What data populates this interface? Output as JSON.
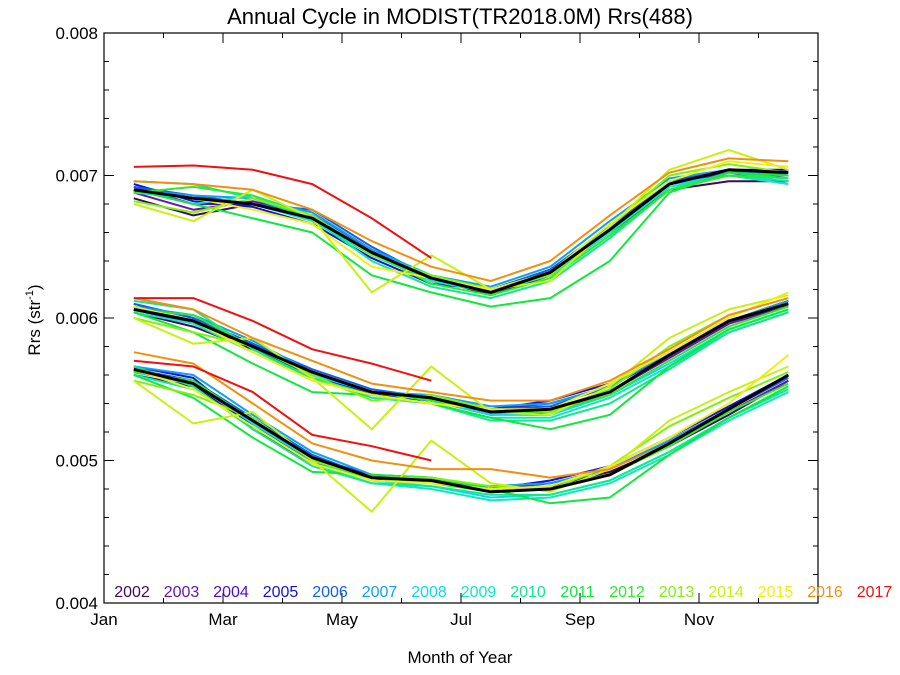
{
  "chart_data": {
    "type": "line",
    "title": "Annual Cycle in MODIST(TR2018.0M) Rrs(488)",
    "xlabel": "Month of Year",
    "ylabel": "Rrs (str",
    "ylabel_sup": "-1",
    "ylabel_close": ")",
    "xlim": [
      1,
      13
    ],
    "ylim": [
      0.004,
      0.008
    ],
    "x": [
      1.5,
      2.5,
      3.5,
      4.5,
      5.5,
      6.5,
      7.5,
      8.5,
      9.5,
      10.5,
      11.5,
      12.5
    ],
    "xticks": [
      {
        "value": 1,
        "label": "Jan"
      },
      {
        "value": 3,
        "label": "Mar"
      },
      {
        "value": 5,
        "label": "May"
      },
      {
        "value": 7,
        "label": "Jul"
      },
      {
        "value": 9,
        "label": "Sep"
      },
      {
        "value": 11,
        "label": "Nov"
      }
    ],
    "yticks": [
      {
        "value": 0.004,
        "label": "0.004"
      },
      {
        "value": 0.005,
        "label": "0.005"
      },
      {
        "value": 0.006,
        "label": "0.006"
      },
      {
        "value": 0.007,
        "label": "0.007"
      },
      {
        "value": 0.008,
        "label": "0.008"
      }
    ],
    "grid": false,
    "legend_placement": "bottom inside plot",
    "series": [
      {
        "name": "2002",
        "color": "#3d0a5c",
        "upper": [
          0.00684,
          0.00672,
          0.0068,
          0.00672,
          0.00645,
          0.00628,
          0.00616,
          0.0063,
          0.0066,
          0.0069,
          0.00696,
          0.00696
        ],
        "middle": [
          0.00604,
          0.00594,
          0.00578,
          0.0056,
          0.00546,
          0.00543,
          0.00534,
          0.00536,
          0.00548,
          0.00572,
          0.00596,
          0.0061
        ],
        "lower": [
          0.0056,
          0.00552,
          0.00526,
          0.005,
          0.00488,
          0.00488,
          0.0048,
          0.00482,
          0.00492,
          0.0051,
          0.00532,
          0.00556
        ]
      },
      {
        "name": "2003",
        "color": "#6a14a8",
        "upper": [
          0.00688,
          0.00676,
          0.00682,
          0.00672,
          0.00648,
          0.00626,
          0.00618,
          0.00632,
          0.00664,
          0.00694,
          0.007,
          0.007
        ],
        "middle": [
          0.00606,
          0.00596,
          0.0058,
          0.00562,
          0.00548,
          0.00542,
          0.00532,
          0.00534,
          0.00548,
          0.00572,
          0.00596,
          0.00608
        ],
        "lower": [
          0.00562,
          0.00554,
          0.00528,
          0.00502,
          0.0049,
          0.00488,
          0.00478,
          0.0048,
          0.0049,
          0.00512,
          0.00534,
          0.00556
        ]
      },
      {
        "name": "2004",
        "color": "#4a10d0",
        "upper": [
          0.00692,
          0.0068,
          0.0068,
          0.0067,
          0.00646,
          0.00628,
          0.0062,
          0.00634,
          0.00664,
          0.00694,
          0.00702,
          0.00702
        ],
        "middle": [
          0.00608,
          0.00598,
          0.0058,
          0.00562,
          0.00548,
          0.00544,
          0.00536,
          0.0054,
          0.00552,
          0.00574,
          0.00598,
          0.00612
        ],
        "lower": [
          0.00564,
          0.00556,
          0.00522,
          0.00498,
          0.00488,
          0.00488,
          0.0048,
          0.00484,
          0.00494,
          0.00514,
          0.00536,
          0.0056
        ]
      },
      {
        "name": "2005",
        "color": "#1010e0",
        "upper": [
          0.00694,
          0.00682,
          0.00678,
          0.00666,
          0.00642,
          0.00624,
          0.0062,
          0.00632,
          0.00662,
          0.00696,
          0.00704,
          0.00704
        ],
        "middle": [
          0.0061,
          0.006,
          0.00582,
          0.0056,
          0.00546,
          0.00542,
          0.00536,
          0.00542,
          0.00554,
          0.00576,
          0.00598,
          0.00612
        ],
        "lower": [
          0.00566,
          0.00558,
          0.00524,
          0.005,
          0.00486,
          0.00486,
          0.0048,
          0.00486,
          0.00496,
          0.00516,
          0.00538,
          0.0056
        ]
      },
      {
        "name": "2006",
        "color": "#1060e8",
        "upper": [
          0.00692,
          0.00686,
          0.0068,
          0.00676,
          0.0065,
          0.00628,
          0.0062,
          0.00634,
          0.00664,
          0.00696,
          0.00704,
          0.007
        ],
        "middle": [
          0.0061,
          0.006,
          0.00582,
          0.00564,
          0.0055,
          0.00544,
          0.00536,
          0.00538,
          0.00552,
          0.00574,
          0.00598,
          0.0061
        ],
        "lower": [
          0.00564,
          0.00556,
          0.0053,
          0.00504,
          0.00488,
          0.00486,
          0.00482,
          0.00484,
          0.00494,
          0.00514,
          0.00536,
          0.00558
        ]
      },
      {
        "name": "2007",
        "color": "#10a0f0",
        "upper": [
          0.0069,
          0.00686,
          0.00684,
          0.00674,
          0.00648,
          0.0063,
          0.00622,
          0.00636,
          0.00668,
          0.00698,
          0.00704,
          0.007
        ],
        "middle": [
          0.00608,
          0.00602,
          0.00584,
          0.00562,
          0.00548,
          0.00546,
          0.00538,
          0.0054,
          0.00552,
          0.00576,
          0.00598,
          0.00612
        ],
        "lower": [
          0.00566,
          0.0056,
          0.00532,
          0.00506,
          0.0049,
          0.00486,
          0.00482,
          0.00484,
          0.00494,
          0.00514,
          0.00536,
          0.0056
        ]
      },
      {
        "name": "2008",
        "color": "#10d8e8",
        "upper": [
          0.0069,
          0.0068,
          0.00686,
          0.00672,
          0.00646,
          0.0063,
          0.0062,
          0.00632,
          0.00662,
          0.00694,
          0.007,
          0.00696
        ],
        "middle": [
          0.00606,
          0.00598,
          0.0058,
          0.0056,
          0.00548,
          0.00542,
          0.00532,
          0.00532,
          0.00546,
          0.00568,
          0.00592,
          0.00606
        ],
        "lower": [
          0.00562,
          0.00554,
          0.00526,
          0.005,
          0.00486,
          0.00482,
          0.00474,
          0.00476,
          0.00486,
          0.00506,
          0.0053,
          0.00552
        ]
      },
      {
        "name": "2009",
        "color": "#10e8c0",
        "upper": [
          0.00688,
          0.00684,
          0.0068,
          0.00668,
          0.00644,
          0.00626,
          0.00618,
          0.0063,
          0.0066,
          0.00692,
          0.007,
          0.00694
        ],
        "middle": [
          0.00604,
          0.00596,
          0.00576,
          0.00558,
          0.00544,
          0.0054,
          0.0053,
          0.0053,
          0.00544,
          0.00566,
          0.0059,
          0.00604
        ],
        "lower": [
          0.0056,
          0.0055,
          0.00524,
          0.00498,
          0.00484,
          0.0048,
          0.00472,
          0.00474,
          0.00484,
          0.00504,
          0.00528,
          0.00548
        ]
      },
      {
        "name": "2010",
        "color": "#10e890",
        "upper": [
          0.00696,
          0.00694,
          0.00684,
          0.0067,
          0.0064,
          0.00622,
          0.00614,
          0.00626,
          0.00656,
          0.0069,
          0.00702,
          0.00698
        ],
        "middle": [
          0.00612,
          0.00606,
          0.00578,
          0.00558,
          0.00546,
          0.0054,
          0.00528,
          0.00528,
          0.0054,
          0.00564,
          0.0059,
          0.00604
        ],
        "lower": [
          0.00566,
          0.00552,
          0.00522,
          0.00496,
          0.00484,
          0.00482,
          0.00476,
          0.00476,
          0.00486,
          0.00506,
          0.0053,
          0.0055
        ]
      },
      {
        "name": "2011",
        "color": "#10e840",
        "upper": [
          0.0069,
          0.0068,
          0.0067,
          0.0066,
          0.0063,
          0.00618,
          0.00608,
          0.00614,
          0.0064,
          0.00688,
          0.00702,
          0.007
        ],
        "middle": [
          0.00604,
          0.0059,
          0.00568,
          0.00548,
          0.00546,
          0.0054,
          0.0053,
          0.00522,
          0.00532,
          0.00566,
          0.00592,
          0.00606
        ],
        "lower": [
          0.0056,
          0.00544,
          0.00516,
          0.00492,
          0.0049,
          0.00488,
          0.0048,
          0.0047,
          0.00474,
          0.00504,
          0.0053,
          0.00552
        ]
      },
      {
        "name": "2012",
        "color": "#30e830",
        "upper": [
          0.00688,
          0.00692,
          0.00686,
          0.0067,
          0.00646,
          0.00624,
          0.00616,
          0.00628,
          0.00658,
          0.0069,
          0.007,
          0.00698
        ],
        "middle": [
          0.00606,
          0.00602,
          0.0058,
          0.00562,
          0.00548,
          0.00542,
          0.00534,
          0.00534,
          0.00546,
          0.0057,
          0.00594,
          0.00608
        ],
        "lower": [
          0.00562,
          0.00556,
          0.00528,
          0.00502,
          0.00488,
          0.00484,
          0.00478,
          0.0048,
          0.0049,
          0.0051,
          0.00534,
          0.00554
        ]
      },
      {
        "name": "2013",
        "color": "#80f010",
        "upper": [
          0.00682,
          0.00674,
          0.00684,
          0.00672,
          0.00644,
          0.0063,
          0.0062,
          0.0063,
          0.00664,
          0.007,
          0.00708,
          0.00702
        ],
        "middle": [
          0.006,
          0.0059,
          0.0058,
          0.0056,
          0.00542,
          0.00546,
          0.00536,
          0.00534,
          0.0055,
          0.0058,
          0.00602,
          0.00614
        ],
        "lower": [
          0.00556,
          0.00546,
          0.0053,
          0.005,
          0.00488,
          0.00488,
          0.00482,
          0.0048,
          0.00496,
          0.00524,
          0.00544,
          0.00562
        ]
      },
      {
        "name": "2014",
        "color": "#c8f010",
        "upper": [
          0.0068,
          0.00668,
          0.0069,
          0.0067,
          0.00618,
          0.00644,
          0.0062,
          0.00626,
          0.00664,
          0.00704,
          0.00718,
          0.00704
        ],
        "middle": [
          0.006,
          0.00582,
          0.00586,
          0.00558,
          0.00522,
          0.00566,
          0.00534,
          0.00532,
          0.00552,
          0.00586,
          0.00606,
          0.00616
        ],
        "lower": [
          0.00556,
          0.00526,
          0.00534,
          0.005,
          0.00464,
          0.00514,
          0.00484,
          0.00478,
          0.00494,
          0.00528,
          0.00548,
          0.00566
        ]
      },
      {
        "name": "2015",
        "color": "#f0f010",
        "upper": [
          0.0069,
          0.00684,
          0.00676,
          0.00666,
          0.00636,
          0.00628,
          0.0062,
          0.00632,
          0.00666,
          0.00696,
          0.0071,
          0.00706
        ],
        "middle": [
          0.00608,
          0.00598,
          0.00576,
          0.00556,
          0.00546,
          0.0054,
          0.00536,
          0.00536,
          0.00554,
          0.00576,
          0.006,
          0.00618
        ],
        "lower": [
          0.00564,
          0.0055,
          0.00524,
          0.00498,
          0.00486,
          0.00484,
          0.0048,
          0.00482,
          0.00496,
          0.00516,
          0.0054,
          0.00574
        ]
      },
      {
        "name": "2016",
        "color": "#f09010",
        "upper": [
          0.00696,
          0.00694,
          0.0069,
          0.00676,
          0.00654,
          0.00636,
          0.00626,
          0.0064,
          0.00672,
          0.00702,
          0.00712,
          0.0071
        ],
        "middle": [
          0.00614,
          0.00606,
          0.00586,
          0.0057,
          0.00554,
          0.00548,
          0.00542,
          0.00542,
          0.00556,
          0.00578,
          0.00602,
          0.00614
        ],
        "lower": [
          0.00576,
          0.00568,
          0.0054,
          0.00512,
          0.005,
          0.00494,
          0.00494,
          0.00488,
          0.00494,
          0.00512,
          0.00536,
          0.0056
        ]
      },
      {
        "name": "2017",
        "color": "#f01010",
        "upper": [
          0.00706,
          0.00707,
          0.00704,
          0.00694,
          0.0067,
          0.00642
        ],
        "middle": [
          0.00614,
          0.00614,
          0.00598,
          0.00578,
          0.00568,
          0.00556
        ],
        "lower": [
          0.0057,
          0.00566,
          0.00548,
          0.00518,
          0.0051,
          0.005
        ]
      },
      {
        "name": "",
        "color": "#000000",
        "upper": [
          0.0069,
          0.00684,
          0.0068,
          0.0067,
          0.00646,
          0.00628,
          0.00618,
          0.00632,
          0.00662,
          0.00694,
          0.00704,
          0.00702
        ],
        "middle": [
          0.00606,
          0.00598,
          0.0058,
          0.00562,
          0.00548,
          0.00544,
          0.00534,
          0.00536,
          0.00548,
          0.00574,
          0.00598,
          0.0061
        ],
        "lower": [
          0.00564,
          0.00554,
          0.00528,
          0.00502,
          0.00488,
          0.00486,
          0.00478,
          0.0048,
          0.0049,
          0.00512,
          0.00536,
          0.0056
        ]
      }
    ]
  }
}
